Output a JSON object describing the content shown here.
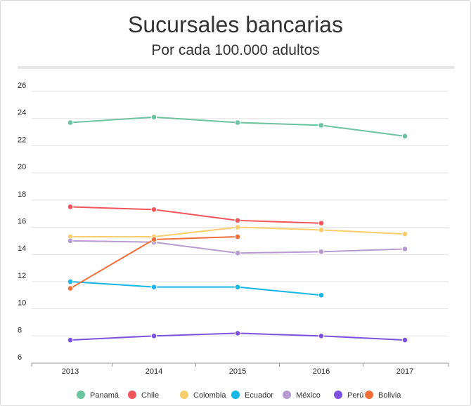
{
  "chart_data": {
    "type": "line",
    "title": "Sucursales bancarias",
    "subtitle": "Por cada 100.000 adultos",
    "xlabel": "",
    "ylabel": "",
    "ylim": [
      6,
      26
    ],
    "yticks": [
      6,
      8,
      10,
      12,
      14,
      16,
      18,
      20,
      22,
      24,
      26
    ],
    "categories": [
      "2013",
      "2014",
      "2015",
      "2016",
      "2017"
    ],
    "grid": true,
    "legend_position": "bottom",
    "series": [
      {
        "name": "Panamá",
        "color": "#6cc3a0",
        "values": [
          23.7,
          24.1,
          23.7,
          23.5,
          22.7
        ]
      },
      {
        "name": "Chile",
        "color": "#f2555c",
        "values": [
          17.5,
          17.3,
          16.5,
          16.3,
          null
        ]
      },
      {
        "name": "Colombia",
        "color": "#f8cd6b",
        "values": [
          15.3,
          15.3,
          16.0,
          15.8,
          15.5
        ]
      },
      {
        "name": "Ecuador",
        "color": "#15b7e6",
        "values": [
          12.0,
          11.6,
          11.6,
          11.0,
          null
        ]
      },
      {
        "name": "México",
        "color": "#b79ad0",
        "values": [
          15.0,
          14.9,
          14.1,
          14.2,
          14.4
        ]
      },
      {
        "name": "Perú",
        "color": "#7d52e0",
        "values": [
          7.7,
          8.0,
          8.2,
          8.0,
          7.7
        ]
      },
      {
        "name": "Bolivia",
        "color": "#f26f3a",
        "values": [
          11.5,
          15.1,
          15.3,
          null,
          null
        ]
      }
    ]
  }
}
